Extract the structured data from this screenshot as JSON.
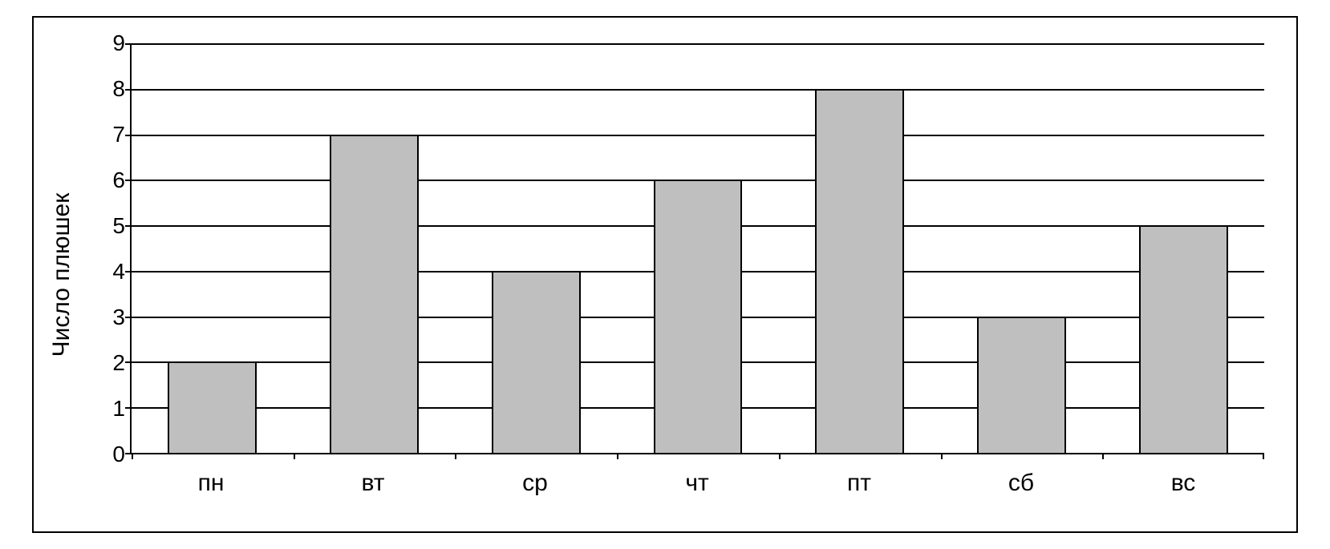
{
  "chart": {
    "type": "bar",
    "ylabel": "Число плюшек",
    "categories": [
      "пн",
      "вт",
      "ср",
      "чт",
      "пт",
      "сб",
      "вс"
    ],
    "values": [
      2,
      7,
      4,
      6,
      8,
      3,
      5
    ],
    "ylim": [
      0,
      9
    ],
    "ytick_step": 1,
    "yticks": [
      0,
      1,
      2,
      3,
      4,
      5,
      6,
      7,
      8,
      9
    ],
    "bar_color": "#bfbfbf",
    "bar_border_color": "#000000",
    "grid_color": "#000000",
    "axis_color": "#000000",
    "background_color": "#ffffff",
    "bar_width": 0.55,
    "label_fontsize": 30,
    "tick_fontsize": 28,
    "plot_top_pct": 5,
    "plot_bottom_pct": 85,
    "xlabels_top_pct": 88
  }
}
